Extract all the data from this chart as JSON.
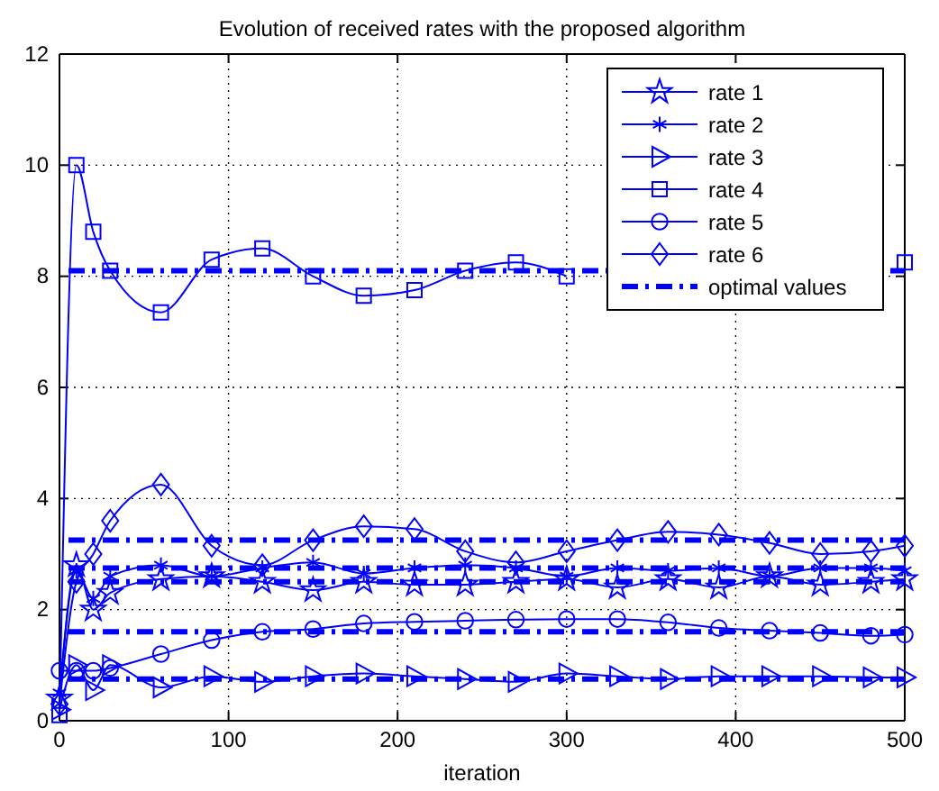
{
  "chart_data": {
    "type": "line",
    "title": "Evolution of received rates with the proposed algorithm",
    "xlabel": "iteration",
    "x": [
      0,
      10,
      20,
      30,
      60,
      90,
      120,
      150,
      180,
      210,
      240,
      270,
      300,
      330,
      360,
      390,
      420,
      450,
      480,
      500
    ],
    "series": [
      {
        "name": "rate 1",
        "color": "#0000ff",
        "marker": "star",
        "values": [
          0.4,
          2.8,
          2.0,
          2.3,
          2.55,
          2.6,
          2.5,
          2.35,
          2.5,
          2.45,
          2.45,
          2.5,
          2.55,
          2.4,
          2.55,
          2.4,
          2.6,
          2.45,
          2.5,
          2.55
        ]
      },
      {
        "name": "rate 2",
        "color": "#0000ff",
        "marker": "cross",
        "values": [
          0.5,
          2.7,
          2.2,
          2.6,
          2.8,
          2.6,
          2.75,
          2.85,
          2.65,
          2.75,
          2.8,
          2.75,
          2.6,
          2.75,
          2.7,
          2.75,
          2.6,
          2.75,
          2.75,
          2.7
        ]
      },
      {
        "name": "rate 3",
        "color": "#0000ff",
        "marker": "triangle",
        "values": [
          0.2,
          1.0,
          0.55,
          1.0,
          0.6,
          0.8,
          0.7,
          0.8,
          0.85,
          0.8,
          0.75,
          0.7,
          0.85,
          0.8,
          0.75,
          0.8,
          0.8,
          0.8,
          0.78,
          0.78
        ]
      },
      {
        "name": "rate 4",
        "color": "#0000ff",
        "marker": "square",
        "values": [
          0.1,
          10.0,
          8.8,
          8.1,
          7.35,
          8.3,
          8.5,
          8.0,
          7.65,
          7.75,
          8.1,
          8.25,
          8.0,
          null,
          null,
          null,
          null,
          null,
          null,
          8.25
        ]
      },
      {
        "name": "rate 5",
        "color": "#0000ff",
        "marker": "circle",
        "values": [
          0.9,
          0.9,
          0.9,
          0.95,
          1.2,
          1.45,
          1.6,
          1.65,
          1.75,
          1.78,
          1.8,
          1.82,
          1.83,
          1.83,
          1.77,
          1.67,
          1.62,
          1.58,
          1.53,
          1.55
        ]
      },
      {
        "name": "rate 6",
        "color": "#0000ff",
        "marker": "diamond",
        "values": [
          0.3,
          2.5,
          3.0,
          3.6,
          4.25,
          3.15,
          2.8,
          3.25,
          3.5,
          3.45,
          3.05,
          2.85,
          3.05,
          3.25,
          3.4,
          3.35,
          3.2,
          3.0,
          3.05,
          3.15
        ]
      }
    ],
    "ref_lines": [
      {
        "axis": "y",
        "value": 8.1,
        "label": "optimal values",
        "color": "#0000ff",
        "line_style": "dashed"
      },
      {
        "axis": "y",
        "value": 3.25,
        "color": "#0000ff",
        "line_style": "dashed"
      },
      {
        "axis": "y",
        "value": 2.75,
        "color": "#0000ff",
        "line_style": "dashed"
      },
      {
        "axis": "y",
        "value": 2.5,
        "color": "#0000ff",
        "line_style": "dashed"
      },
      {
        "axis": "y",
        "value": 1.6,
        "color": "#0000ff",
        "line_style": "dashed"
      },
      {
        "axis": "y",
        "value": 0.75,
        "color": "#0000ff",
        "line_style": "dashed"
      }
    ],
    "xlim": [
      0,
      500
    ],
    "xticks": [
      0,
      100,
      200,
      300,
      400,
      500
    ],
    "ylim": [
      0,
      12
    ],
    "yticks": [
      0,
      2,
      4,
      6,
      8,
      10,
      12
    ],
    "grid": true,
    "legend": "top right"
  }
}
